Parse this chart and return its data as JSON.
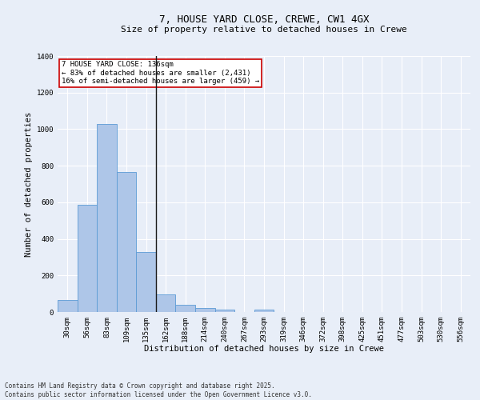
{
  "title": "7, HOUSE YARD CLOSE, CREWE, CW1 4GX",
  "subtitle": "Size of property relative to detached houses in Crewe",
  "xlabel": "Distribution of detached houses by size in Crewe",
  "ylabel": "Number of detached properties",
  "categories": [
    "30sqm",
    "56sqm",
    "83sqm",
    "109sqm",
    "135sqm",
    "162sqm",
    "188sqm",
    "214sqm",
    "240sqm",
    "267sqm",
    "293sqm",
    "319sqm",
    "346sqm",
    "372sqm",
    "398sqm",
    "425sqm",
    "451sqm",
    "477sqm",
    "503sqm",
    "530sqm",
    "556sqm"
  ],
  "values": [
    65,
    585,
    1030,
    765,
    330,
    95,
    38,
    22,
    13,
    0,
    15,
    0,
    0,
    0,
    0,
    0,
    0,
    0,
    0,
    0,
    0
  ],
  "bar_color": "#aec6e8",
  "bar_edge_color": "#5b9bd5",
  "vline_x_index": 4,
  "vline_color": "#1a1a1a",
  "annotation_text": "7 HOUSE YARD CLOSE: 136sqm\n← 83% of detached houses are smaller (2,431)\n16% of semi-detached houses are larger (459) →",
  "annotation_box_color": "#ffffff",
  "annotation_box_edge": "#cc0000",
  "ylim": [
    0,
    1400
  ],
  "yticks": [
    0,
    200,
    400,
    600,
    800,
    1000,
    1200,
    1400
  ],
  "bg_color": "#e8eef8",
  "plot_bg_color": "#e8eef8",
  "grid_color": "#ffffff",
  "footer": "Contains HM Land Registry data © Crown copyright and database right 2025.\nContains public sector information licensed under the Open Government Licence v3.0.",
  "title_fontsize": 9,
  "subtitle_fontsize": 8,
  "xlabel_fontsize": 7.5,
  "ylabel_fontsize": 7.5,
  "tick_fontsize": 6.5,
  "annotation_fontsize": 6.5,
  "footer_fontsize": 5.5
}
